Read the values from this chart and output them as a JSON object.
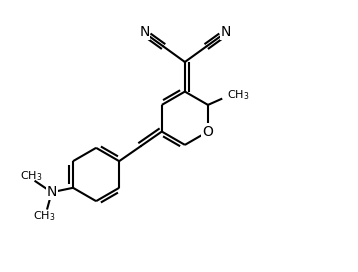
{
  "background": "#ffffff",
  "line_color": "#000000",
  "line_width": 1.5,
  "font_size": 9,
  "figsize": [
    3.58,
    2.72
  ],
  "dpi": 100,
  "xlim": [
    0,
    10
  ],
  "ylim": [
    0,
    9
  ]
}
